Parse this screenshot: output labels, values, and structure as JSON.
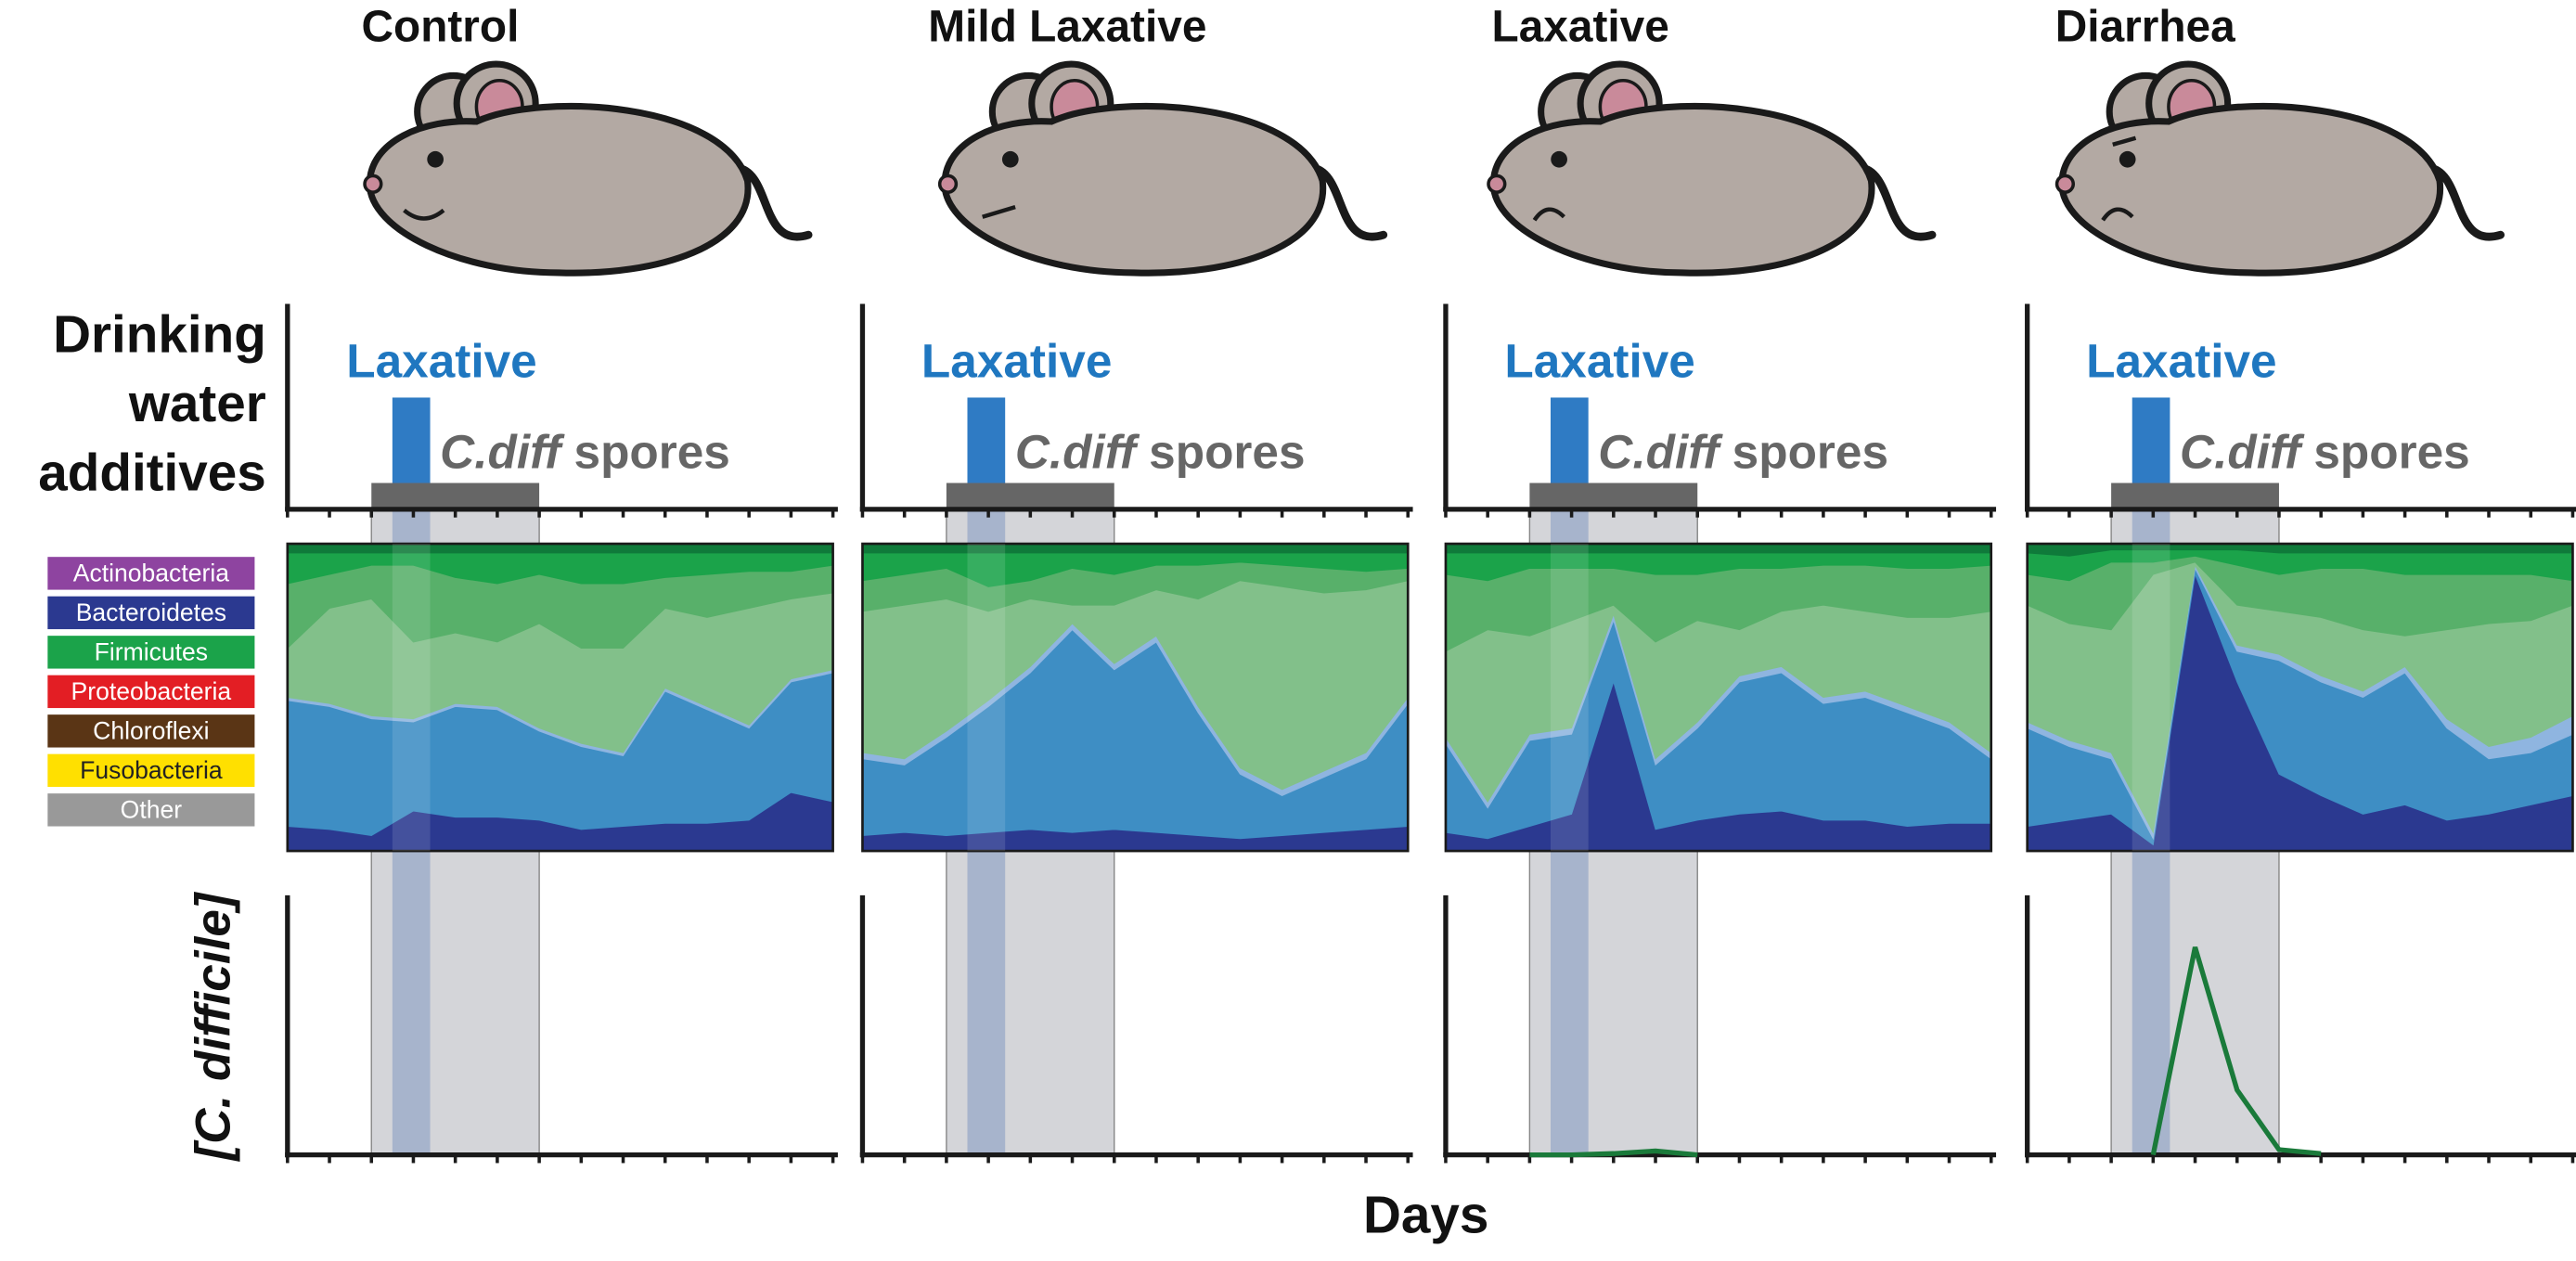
{
  "legend": [
    {
      "label": "Actinobacteria",
      "color": "#8e44a0"
    },
    {
      "label": "Bacteroidetes",
      "color": "#2b3990"
    },
    {
      "label": "Firmicutes",
      "color": "#1ba34a"
    },
    {
      "label": "Proteobacteria",
      "color": "#e31e24"
    },
    {
      "label": "Chloroflexi",
      "color": "#5a3515"
    },
    {
      "label": "Fusobacteria",
      "color": "#ffe000"
    },
    {
      "label": "Other",
      "color": "#999999"
    }
  ],
  "row_labels": {
    "additives": [
      "Drinking",
      "water",
      "additives"
    ],
    "cdiff": "[C. difficile]"
  },
  "x_label": "Days",
  "panels": [
    {
      "title": "Control",
      "laxative_label": "Laxative",
      "spores_label": {
        "italic": "C.diff",
        "text": "spores"
      },
      "xlim": [
        0,
        13
      ],
      "xticks": [
        0,
        1,
        2,
        3,
        4,
        5,
        6,
        7,
        8,
        9,
        10,
        11,
        12,
        13
      ],
      "laxative_days": [
        2.5,
        3.4
      ],
      "spores_days": [
        2,
        6
      ],
      "composition": {
        "type": "stacked_area",
        "ylim": [
          0,
          100
        ],
        "x": [
          0,
          1,
          2,
          3,
          4,
          5,
          6,
          7,
          8,
          9,
          10,
          11,
          12,
          13
        ],
        "series": [
          {
            "color": "#2b3990",
            "values": [
              8,
              7,
              5,
              13,
              11,
              11,
              10,
              7,
              8,
              9,
              9,
              10,
              19,
              16
            ]
          },
          {
            "color": "#3e8ec4",
            "values": [
              41,
              40,
              38,
              29,
              36,
              35,
              29,
              27,
              23,
              43,
              37,
              30,
              36,
              42
            ]
          },
          {
            "color": "#8fb5e0",
            "values": [
              1,
              1,
              1,
              1,
              1,
              1,
              1,
              1,
              1,
              1,
              1,
              1,
              1,
              1
            ]
          },
          {
            "color": "#82c08a",
            "values": [
              16,
              31,
              38,
              25,
              23,
              21,
              34,
              31,
              34,
              26,
              29,
              38,
              26,
              25
            ]
          },
          {
            "color": "#58b06a",
            "values": [
              21,
              11,
              11,
              25,
              18,
              19,
              16,
              21,
              21,
              10,
              14,
              12,
              9,
              9
            ]
          },
          {
            "color": "#1ba34a",
            "values": [
              10,
              7,
              4,
              4,
              8,
              10,
              7,
              10,
              10,
              8,
              7,
              6,
              6,
              4
            ]
          },
          {
            "color": "#0f7a3a",
            "values": [
              3,
              3,
              3,
              3,
              3,
              3,
              3,
              3,
              3,
              3,
              3,
              3,
              3,
              3
            ]
          }
        ]
      }
    },
    {
      "title": "Mild Laxative",
      "laxative_label": "Laxative",
      "spores_label": {
        "italic": "C.diff",
        "text": "spores"
      },
      "xlim": [
        0,
        13
      ],
      "xticks": [
        0,
        1,
        2,
        3,
        4,
        5,
        6,
        7,
        8,
        9,
        10,
        11,
        12,
        13
      ],
      "laxative_days": [
        2.5,
        3.4
      ],
      "spores_days": [
        2,
        6
      ],
      "composition": {
        "type": "stacked_area",
        "ylim": [
          0,
          100
        ],
        "x": [
          0,
          1,
          2,
          3,
          4,
          5,
          6,
          7,
          8,
          9,
          10,
          11,
          12,
          13
        ],
        "series": [
          {
            "color": "#2b3990",
            "values": [
              5,
              6,
              5,
              6,
              7,
              6,
              7,
              6,
              5,
              4,
              5,
              6,
              7,
              8
            ]
          },
          {
            "color": "#3e8ec4",
            "values": [
              25,
              22,
              32,
              41,
              51,
              66,
              52,
              62,
              40,
              21,
              13,
              18,
              23,
              40
            ]
          },
          {
            "color": "#8fb5e0",
            "values": [
              2,
              2,
              2,
              2,
              2,
              2,
              2,
              2,
              2,
              2,
              2,
              2,
              2,
              2
            ]
          },
          {
            "color": "#82c08a",
            "values": [
              46,
              50,
              43,
              29,
              22,
              6,
              19,
              15,
              35,
              61,
              66,
              58,
              53,
              38
            ]
          },
          {
            "color": "#58b06a",
            "values": [
              10,
              10,
              10,
              8,
              6,
              12,
              10,
              8,
              11,
              6,
              7,
              8,
              6,
              4
            ]
          },
          {
            "color": "#1ba34a",
            "values": [
              9,
              7,
              5,
              11,
              9,
              5,
              7,
              4,
              4,
              3,
              4,
              5,
              6,
              5
            ]
          },
          {
            "color": "#0f7a3a",
            "values": [
              3,
              3,
              3,
              3,
              3,
              3,
              3,
              3,
              3,
              3,
              3,
              3,
              3,
              3
            ]
          }
        ]
      }
    },
    {
      "title": "Laxative",
      "laxative_label": "Laxative",
      "spores_label": {
        "italic": "C.diff",
        "text": "spores"
      },
      "xlim": [
        0,
        13
      ],
      "xticks": [
        0,
        1,
        2,
        3,
        4,
        5,
        6,
        7,
        8,
        9,
        10,
        11,
        12,
        13
      ],
      "laxative_days": [
        2.5,
        3.4
      ],
      "spores_days": [
        2,
        6
      ],
      "composition": {
        "type": "stacked_area",
        "ylim": [
          0,
          100
        ],
        "x": [
          0,
          1,
          2,
          3,
          4,
          5,
          6,
          7,
          8,
          9,
          10,
          11,
          12,
          13
        ],
        "series": [
          {
            "color": "#2b3990",
            "values": [
              6,
              4,
              8,
              12,
              55,
              7,
              10,
              12,
              13,
              10,
              10,
              8,
              9,
              9
            ]
          },
          {
            "color": "#3e8ec4",
            "values": [
              29,
              10,
              28,
              26,
              20,
              21,
              30,
              43,
              45,
              38,
              40,
              37,
              31,
              21
            ]
          },
          {
            "color": "#8fb5e0",
            "values": [
              2,
              2,
              2,
              2,
              2,
              2,
              2,
              2,
              2,
              2,
              2,
              2,
              2,
              2
            ]
          },
          {
            "color": "#82c08a",
            "values": [
              28,
              56,
              32,
              35,
              3,
              38,
              33,
              15,
              18,
              30,
              26,
              29,
              34,
              46
            ]
          },
          {
            "color": "#58b06a",
            "values": [
              25,
              16,
              22,
              17,
              12,
              22,
              15,
              20,
              14,
              13,
              15,
              16,
              16,
              15
            ]
          },
          {
            "color": "#1ba34a",
            "values": [
              7,
              9,
              5,
              5,
              5,
              7,
              7,
              5,
              5,
              4,
              4,
              5,
              5,
              4
            ]
          },
          {
            "color": "#0f7a3a",
            "values": [
              3,
              3,
              3,
              3,
              3,
              3,
              3,
              3,
              3,
              3,
              3,
              3,
              3,
              3
            ]
          }
        ]
      },
      "cdiff": {
        "type": "line",
        "color": "#1a7a3a",
        "ylim": [
          0,
          100
        ],
        "x": [
          2,
          3,
          4,
          5,
          6
        ],
        "values": [
          0,
          0,
          0.5,
          1.5,
          0
        ]
      }
    },
    {
      "title": "Diarrhea",
      "laxative_label": "Laxative",
      "spores_label": {
        "italic": "C.diff",
        "text": "spores"
      },
      "xlim": [
        0,
        13
      ],
      "xticks": [
        0,
        1,
        2,
        3,
        4,
        5,
        6,
        7,
        8,
        9,
        10,
        11,
        12,
        13
      ],
      "laxative_days": [
        2.5,
        3.4
      ],
      "spores_days": [
        2,
        6
      ],
      "composition": {
        "type": "stacked_area",
        "ylim": [
          0,
          100
        ],
        "x": [
          0,
          1,
          2,
          3,
          4,
          5,
          6,
          7,
          8,
          9,
          10,
          11,
          12,
          13
        ],
        "series": [
          {
            "color": "#2b3990",
            "values": [
              8,
              10,
              12,
              2,
              90,
              55,
              25,
              18,
              12,
              15,
              10,
              12,
              15,
              18
            ]
          },
          {
            "color": "#3e8ec4",
            "values": [
              32,
              24,
              18,
              2,
              2,
              10,
              37,
              37,
              38,
              43,
              30,
              18,
              17,
              20
            ]
          },
          {
            "color": "#8fb5e0",
            "values": [
              2,
              2,
              2,
              2,
              1,
              2,
              2,
              2,
              2,
              2,
              3,
              4,
              5,
              6
            ]
          },
          {
            "color": "#82c08a",
            "values": [
              38,
              38,
              40,
              84,
              1,
              13,
              14,
              19,
              20,
              10,
              29,
              40,
              38,
              36
            ]
          },
          {
            "color": "#58b06a",
            "values": [
              10,
              14,
              22,
              4,
              2,
              13,
              12,
              16,
              20,
              20,
              18,
              16,
              15,
              8
            ]
          },
          {
            "color": "#1ba34a",
            "values": [
              7,
              8,
              4,
              4,
              2,
              5,
              7,
              5,
              5,
              7,
              7,
              7,
              7,
              9
            ]
          },
          {
            "color": "#0f7a3a",
            "values": [
              3,
              4,
              2,
              2,
              2,
              2,
              3,
              3,
              3,
              3,
              3,
              3,
              3,
              3
            ]
          }
        ]
      },
      "cdiff": {
        "type": "line",
        "color": "#1a7a3a",
        "ylim": [
          0,
          100
        ],
        "x": [
          3,
          4,
          5,
          6,
          7
        ],
        "values": [
          0,
          80,
          25,
          2,
          0.5
        ]
      }
    }
  ]
}
